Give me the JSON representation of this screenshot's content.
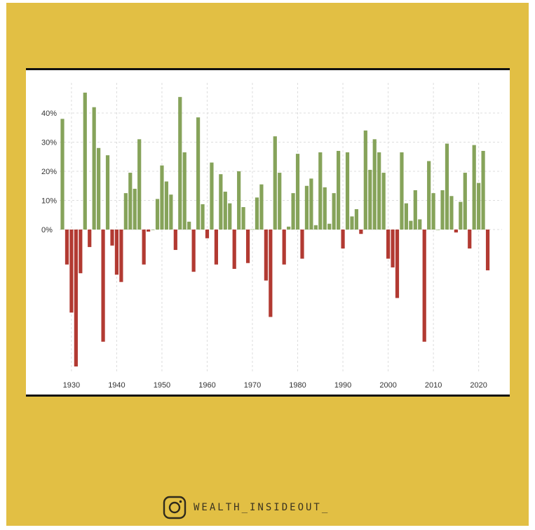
{
  "colors": {
    "frame": "#e2bf44",
    "positive": "#86a35a",
    "negative": "#b23a32",
    "grid": "#dddddd"
  },
  "chart_data": {
    "type": "bar",
    "title": "",
    "xlabel": "",
    "ylabel": "",
    "ylim": [
      -48,
      50
    ],
    "y_ticks": [
      0,
      10,
      20,
      30,
      40
    ],
    "y_tick_labels": [
      "0%",
      "10%",
      "20%",
      "30%",
      "40%"
    ],
    "x_ticks": [
      1930,
      1940,
      1950,
      1960,
      1970,
      1980,
      1990,
      2000,
      2010,
      2020
    ],
    "x_tick_labels": [
      "1930",
      "1940",
      "1950",
      "1960",
      "1970",
      "1980",
      "1990",
      "2000",
      "2010",
      "2020"
    ],
    "grid": true,
    "legend": "none",
    "series": [
      {
        "x": [
          1928,
          1929,
          1930,
          1931,
          1932,
          1933,
          1934,
          1935,
          1936,
          1937,
          1938,
          1939,
          1940,
          1941,
          1942,
          1943,
          1944,
          1945,
          1946,
          1947,
          1948,
          1949,
          1950,
          1951,
          1952,
          1953,
          1954,
          1955,
          1956,
          1957,
          1958,
          1959,
          1960,
          1961,
          1962,
          1963,
          1964,
          1965,
          1966,
          1967,
          1968,
          1969,
          1970,
          1971,
          1972,
          1973,
          1974,
          1975,
          1976,
          1977,
          1978,
          1979,
          1980,
          1981,
          1982,
          1983,
          1984,
          1985,
          1986,
          1987,
          1988,
          1989,
          1990,
          1991,
          1992,
          1993,
          1994,
          1995,
          1996,
          1997,
          1998,
          1999,
          2000,
          2001,
          2002,
          2003,
          2004,
          2005,
          2006,
          2007,
          2008,
          2009,
          2010,
          2011,
          2012,
          2013,
          2014,
          2015,
          2016,
          2017,
          2018,
          2019,
          2020,
          2021,
          2022
        ],
        "values": [
          38,
          -12,
          -28.5,
          -47,
          -15,
          47,
          -6,
          42,
          28,
          -38.5,
          25.5,
          -5.5,
          -15.5,
          -18,
          12.5,
          19.5,
          14,
          31,
          -12,
          -0.7,
          0,
          10.5,
          22,
          16.5,
          12,
          -7,
          45.5,
          26.5,
          2.7,
          -14.5,
          38.5,
          8.7,
          -3,
          23,
          -12,
          19,
          13,
          9,
          -13.5,
          20,
          7.7,
          -11.5,
          0.1,
          11,
          15.5,
          -17.5,
          -30,
          32,
          19.5,
          -12,
          1,
          12.5,
          26,
          -10,
          15,
          17.5,
          1.5,
          26.5,
          14.5,
          2,
          12.5,
          27,
          -6.5,
          26.5,
          4.5,
          7,
          -1.5,
          34,
          20.5,
          31,
          26.5,
          19.5,
          -10,
          -13,
          -23.5,
          26.5,
          9,
          3,
          13.5,
          3.5,
          -38.5,
          23.5,
          12.5,
          0,
          13.5,
          29.5,
          11.5,
          -1,
          9.5,
          19.5,
          -6.5,
          29,
          16,
          27,
          -14
        ]
      }
    ]
  },
  "watermark": {
    "icon": "instagram-icon",
    "handle": "WEALTH_INSIDEOUT_"
  }
}
